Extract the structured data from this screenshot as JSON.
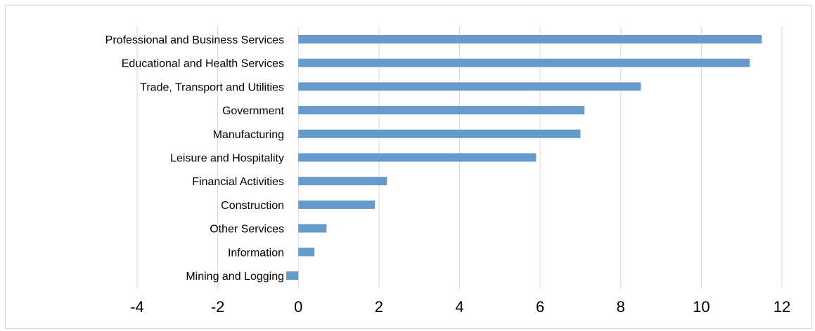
{
  "chart_data": {
    "type": "bar",
    "orientation": "horizontal",
    "title": "",
    "xlabel": "",
    "ylabel": "",
    "categories": [
      "Professional and Business Services",
      "Educational and Health Services",
      "Trade, Transport and Utilities",
      "Government ",
      "Manufacturing",
      "Leisure and Hospitality",
      "Financial Activities",
      "Construction",
      "Other Services",
      "Information",
      "Mining and Logging"
    ],
    "values": [
      11.5,
      11.2,
      8.5,
      7.1,
      7.0,
      5.9,
      2.2,
      1.9,
      0.7,
      0.4,
      -0.3
    ],
    "xlim": [
      -4,
      12
    ],
    "xticks": [
      "-4",
      "-2",
      "0",
      "2",
      "4",
      "6",
      "8",
      "10",
      "12"
    ],
    "grid": "vertical",
    "legend": "none",
    "colors": {
      "bar": "#6699cc",
      "grid": "#d9d9d9"
    }
  }
}
